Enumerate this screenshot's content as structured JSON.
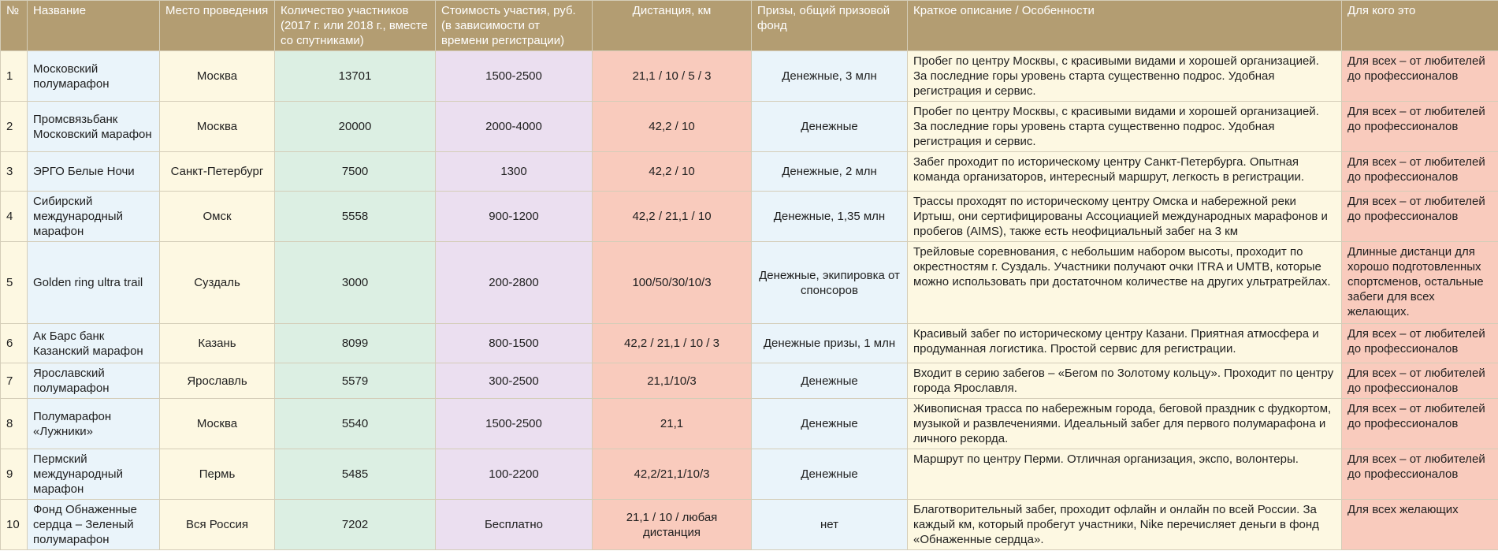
{
  "headers": {
    "num": "№",
    "name": "Название",
    "place": "Место проведения",
    "participants": "Количество участников (2017 г. или 2018 г., вместе со спутниками)",
    "cost": "Стоимость участия, руб. (в зависимости от времени регистрации)",
    "distance": "Дистанция, км",
    "prizes": "Призы, общий призовой фонд",
    "description": "Краткое описание / Особенности",
    "audience": "Для кого это"
  },
  "rows": [
    {
      "num": "1",
      "name": "Московский полумарафон",
      "place": "Москва",
      "participants": "13701",
      "cost": "1500-2500",
      "distance": "21,1 / 10 / 5 / 3",
      "prizes": "Денежные, 3 млн",
      "description": "Пробег по центру Москвы, с красивыми видами и хорошей организацией. За последние горы уровень старта существенно подрос. Удобная регистрация и сервис.",
      "audience": "Для всех – от любителей до профессионалов"
    },
    {
      "num": "2",
      "name": "Промсвязьбанк Московский марафон",
      "place": "Москва",
      "participants": "20000",
      "cost": "2000-4000",
      "distance": "42,2 / 10",
      "prizes": "Денежные",
      "description": "Пробег по центру Москвы, с красивыми видами и хорошей организацией. За последние горы уровень старта существенно подрос. Удобная регистрация и сервис.",
      "audience": "Для всех – от любителей до профессионалов"
    },
    {
      "num": "3",
      "name": "ЭРГО Белые Ночи",
      "place": "Санкт-Петербург",
      "participants": "7500",
      "cost": "1300",
      "distance": "42,2 / 10",
      "prizes": "Денежные, 2 млн",
      "description": "Забег проходит по историческому центру Санкт-Петербурга. Опытная команда организаторов, интересный маршрут, легкость в регистрации.",
      "audience": "Для всех – от любителей до профессионалов"
    },
    {
      "num": "4",
      "name": "Сибирский международный марафон",
      "place": "Омск",
      "participants": "5558",
      "cost": "900-1200",
      "distance": "42,2 / 21,1 / 10",
      "prizes": "Денежные, 1,35 млн",
      "description": "Трассы проходят по историческому центру Омска и набережной реки Иртыш, они сертифицированы Ассоциацией международных марафонов и пробегов (AIMS), также есть неофициальный забег на 3 км",
      "audience": "Для всех – от любителей до профессионалов"
    },
    {
      "num": "5",
      "name": "Golden ring ultra trail",
      "place": "Суздаль",
      "participants": "3000",
      "cost": "200-2800",
      "distance": "100/50/30/10/3",
      "prizes": "Денежные, экипировка от спонсоров",
      "description": "Трейловые соревнования, с небольшим набором высоты, проходит по окрестностям г. Суздаль. Участники получают очки ITRA и UMTB, которые можно использовать при достаточном количестве на других ультратрейлах.",
      "audience": "Длинные дистанци для хорошо подготовленных спортсменов, остальные забеги для всех желающих."
    },
    {
      "num": "6",
      "name": "Ак Барс банк Казанский марафон",
      "place": "Казань",
      "participants": "8099",
      "cost": "800-1500",
      "distance": "42,2 / 21,1 / 10 / 3",
      "prizes": "Денежные призы, 1 млн",
      "description": "Красивый забег по историческому центру Казани. Приятная атмосфера и продуманная логистика. Простой сервис для регистрации.",
      "audience": "Для всех – от любителей до профессионалов"
    },
    {
      "num": "7",
      "name": "Ярославский полумарафон",
      "place": "Ярославль",
      "participants": "5579",
      "cost": "300-2500",
      "distance": "21,1/10/3",
      "prizes": "Денежные",
      "description": "Входит в серию забегов – «Бегом по Золотому кольцу». Проходит по центру города Ярославля.",
      "audience": "Для всех – от любителей до профессионалов"
    },
    {
      "num": "8",
      "name": "Полумарафон «Лужники»",
      "place": "Москва",
      "participants": "5540",
      "cost": "1500-2500",
      "distance": "21,1",
      "prizes": "Денежные",
      "description": "Живописная трасса по набережным города, беговой праздник с фудкортом, музыкой и развлечениями. Идеальный забег для первого полумарафона и личного рекорда.",
      "audience": "Для всех – от любителей до профессионалов"
    },
    {
      "num": "9",
      "name": "Пермский международный марафон",
      "place": "Пермь",
      "participants": "5485",
      "cost": "100-2200",
      "distance": "42,2/21,1/10/3",
      "prizes": "Денежные",
      "description": "Маршрут по центру Перми. Отличная организация, экспо, волонтеры.",
      "audience": "Для всех – от любителей до профессионалов"
    },
    {
      "num": "10",
      "name": "Фонд Обнаженные сердца – Зеленый полумарафон",
      "place": "Вся Россия",
      "participants": "7202",
      "cost": "Бесплатно",
      "distance": "21,1 / 10 / любая дистанция",
      "prizes": "нет",
      "description": "Благотворительный забег, проходит офлайн и онлайн по всей России. За каждый км, который пробегут участники, Nike перечисляет деньги в фонд «Обнаженные сердца».",
      "audience": "Для всех желающих"
    }
  ]
}
